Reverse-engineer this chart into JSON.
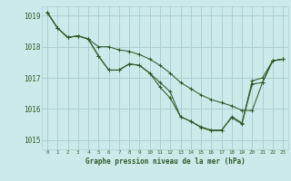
{
  "title": "Graphe pression niveau de la mer (hPa)",
  "bg_color": "#cceaea",
  "grid_color": "#aacfcf",
  "line_color": "#2d5a27",
  "xlim": [
    -0.5,
    23.5
  ],
  "ylim": [
    1014.7,
    1019.3
  ],
  "yticks": [
    1015,
    1016,
    1017,
    1018,
    1019
  ],
  "xticks": [
    0,
    1,
    2,
    3,
    4,
    5,
    6,
    7,
    8,
    9,
    10,
    11,
    12,
    13,
    14,
    15,
    16,
    17,
    18,
    19,
    20,
    21,
    22,
    23
  ],
  "series": [
    [
      1019.1,
      1018.6,
      1018.3,
      1018.35,
      1018.25,
      1018.0,
      1018.0,
      1017.9,
      1017.85,
      1017.75,
      1017.6,
      1017.4,
      1017.15,
      1016.85,
      1016.65,
      1016.45,
      1016.3,
      1016.2,
      1016.1,
      1015.95,
      1015.95,
      1016.85,
      1017.55,
      1017.6
    ],
    [
      1019.1,
      1018.6,
      1018.3,
      1018.35,
      1018.25,
      1017.7,
      1017.25,
      1017.25,
      1017.45,
      1017.4,
      1017.15,
      1016.7,
      1016.35,
      1015.75,
      1015.6,
      1015.4,
      1015.3,
      1015.3,
      1015.75,
      1015.55,
      1016.9,
      1017.0,
      1017.55,
      1017.6
    ],
    [
      1019.1,
      1018.6,
      1018.3,
      1018.35,
      1018.25,
      1017.7,
      1017.25,
      1017.25,
      1017.45,
      1017.4,
      1017.15,
      1016.85,
      1016.55,
      1015.75,
      1015.6,
      1015.42,
      1015.32,
      1015.32,
      1015.72,
      1015.52,
      1016.8,
      1016.85,
      1017.55,
      1017.6
    ]
  ]
}
